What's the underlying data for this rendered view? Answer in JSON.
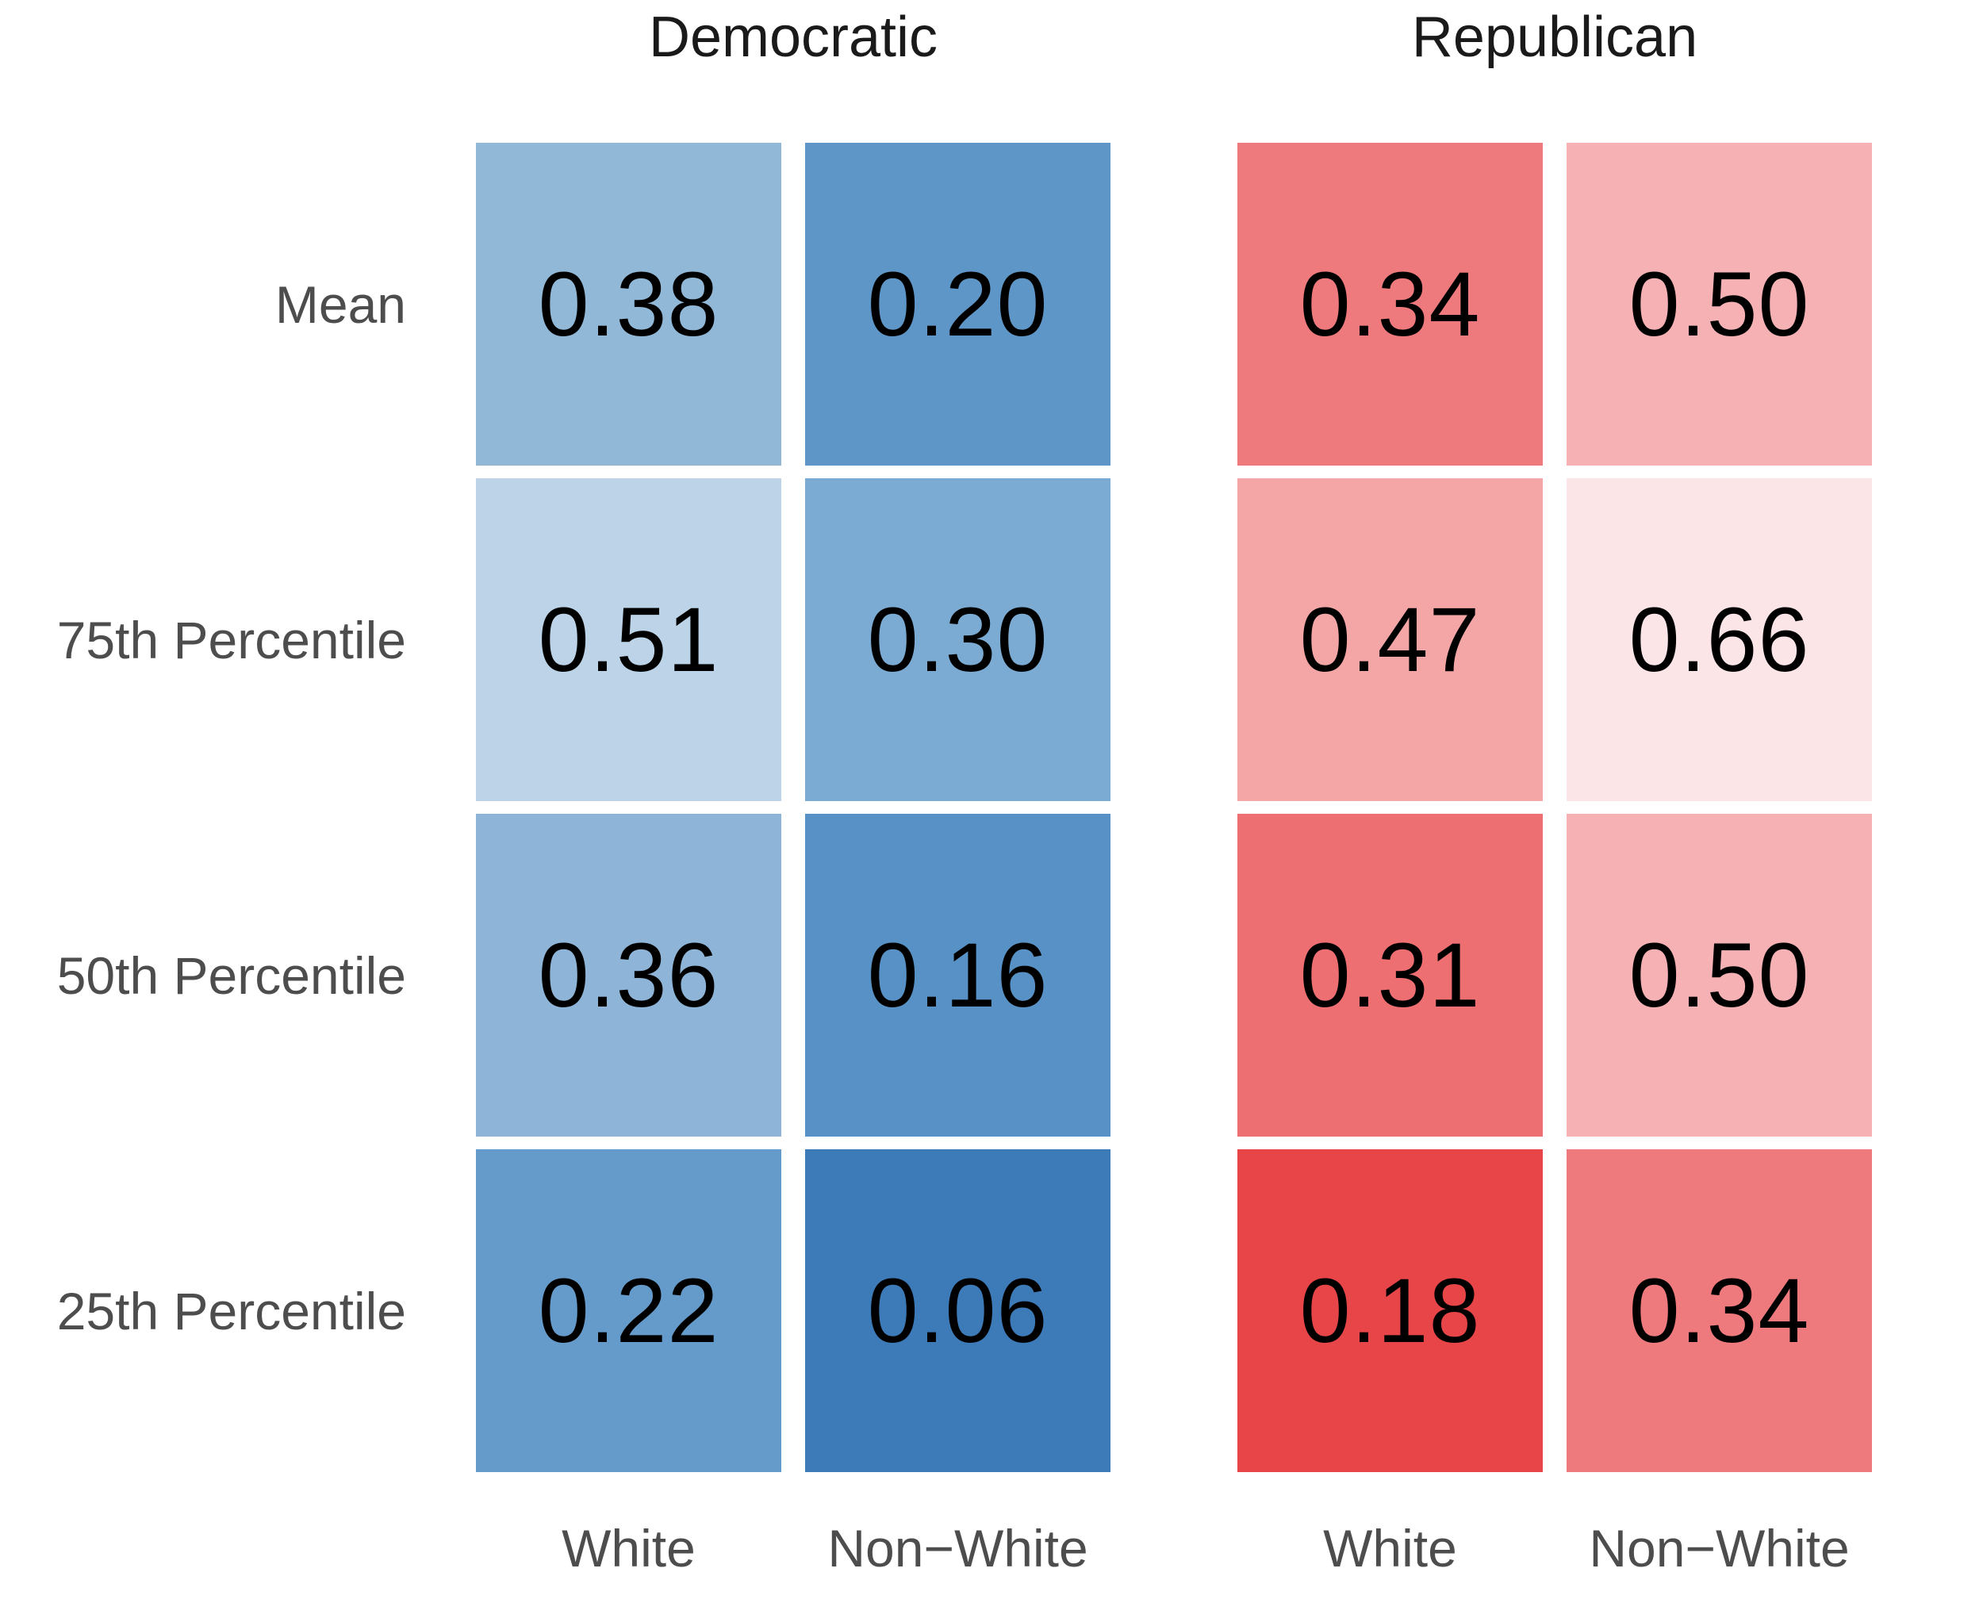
{
  "chart_data": {
    "type": "heatmap",
    "title": "",
    "rows": [
      "Mean",
      "75th Percentile",
      "50th Percentile",
      "25th Percentile"
    ],
    "panels": [
      {
        "label": "Democratic",
        "columns": [
          "White",
          "Non−White"
        ],
        "values": [
          [
            0.38,
            0.2
          ],
          [
            0.51,
            0.3
          ],
          [
            0.36,
            0.16
          ],
          [
            0.22,
            0.06
          ]
        ]
      },
      {
        "label": "Republican",
        "columns": [
          "White",
          "Non−White"
        ],
        "values": [
          [
            0.34,
            0.5
          ],
          [
            0.47,
            0.66
          ],
          [
            0.31,
            0.5
          ],
          [
            0.18,
            0.34
          ]
        ]
      }
    ],
    "layout": {
      "grid": "off",
      "legend": "none",
      "row_labels_position": "left",
      "column_labels_position": "bottom",
      "color_scheme": "blue shades for Democratic (darker = lower value), red shades for Republican (darker = lower value)"
    },
    "colors": {
      "background": "#ffffff",
      "header_text": "#1a1a1a",
      "axis_text": "#4d4d4d",
      "value_text": "#000000",
      "dem_darkest": "#3d7ab8",
      "dem_lightest": "#bcd3e8",
      "rep_darkest": "#e84548",
      "rep_lightest": "#fce5e7"
    }
  },
  "cells": [
    {
      "row": "Mean",
      "panel": "Democratic",
      "column": "White",
      "value": "0.38",
      "color": "#92b8d8"
    },
    {
      "row": "Mean",
      "panel": "Democratic",
      "column": "Non−White",
      "value": "0.20",
      "color": "#5f96c8"
    },
    {
      "row": "Mean",
      "panel": "Republican",
      "column": "White",
      "value": "0.34",
      "color": "#ee7a7d"
    },
    {
      "row": "Mean",
      "panel": "Republican",
      "column": "Non−White",
      "value": "0.50",
      "color": "#f5b1b3"
    },
    {
      "row": "75th Percentile",
      "panel": "Democratic",
      "column": "White",
      "value": "0.51",
      "color": "#bcd3e8"
    },
    {
      "row": "75th Percentile",
      "panel": "Democratic",
      "column": "Non−White",
      "value": "0.30",
      "color": "#7babd3"
    },
    {
      "row": "75th Percentile",
      "panel": "Republican",
      "column": "White",
      "value": "0.47",
      "color": "#f4a6a7"
    },
    {
      "row": "75th Percentile",
      "panel": "Republican",
      "column": "Non−White",
      "value": "0.66",
      "color": "#fce5e7"
    },
    {
      "row": "50th Percentile",
      "panel": "Democratic",
      "column": "White",
      "value": "0.36",
      "color": "#8eb5d8"
    },
    {
      "row": "50th Percentile",
      "panel": "Democratic",
      "column": "Non−White",
      "value": "0.16",
      "color": "#5891c5"
    },
    {
      "row": "50th Percentile",
      "panel": "Republican",
      "column": "White",
      "value": "0.31",
      "color": "#ee6f72"
    },
    {
      "row": "50th Percentile",
      "panel": "Republican",
      "column": "Non−White",
      "value": "0.50",
      "color": "#f5b1b3"
    },
    {
      "row": "25th Percentile",
      "panel": "Democratic",
      "column": "White",
      "value": "0.22",
      "color": "#659bcb"
    },
    {
      "row": "25th Percentile",
      "panel": "Democratic",
      "column": "Non−White",
      "value": "0.06",
      "color": "#3d7ab8"
    },
    {
      "row": "25th Percentile",
      "panel": "Republican",
      "column": "White",
      "value": "0.18",
      "color": "#e84548"
    },
    {
      "row": "25th Percentile",
      "panel": "Republican",
      "column": "Non−White",
      "value": "0.34",
      "color": "#ee7a7d"
    }
  ]
}
